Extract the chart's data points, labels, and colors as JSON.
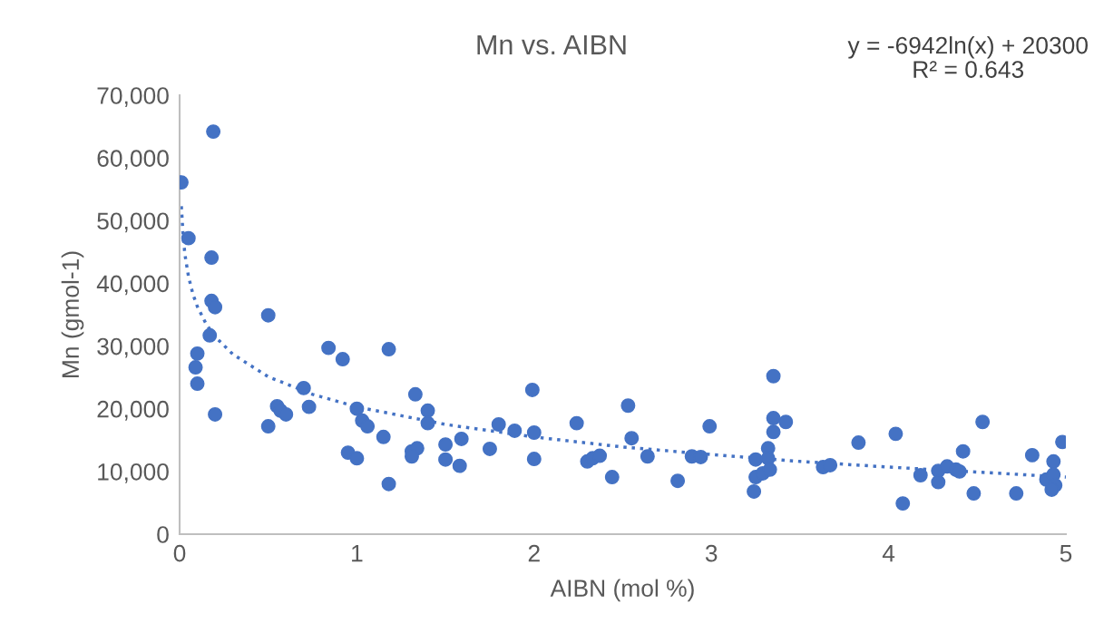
{
  "chart_data": {
    "type": "scatter",
    "title": "Mn vs. AIBN",
    "xlabel": "AIBN (mol %)",
    "ylabel": "Mn (gmol-1)",
    "annotations": [
      "y = -6942ln(x) + 20300\nR² = 0.643"
    ],
    "xlim": [
      0,
      5
    ],
    "xticks": [
      0,
      1,
      2,
      3,
      4,
      5
    ],
    "ylim": [
      0,
      70000
    ],
    "yticks": [
      0,
      {
        "value": 10000,
        "label": "10,000"
      },
      {
        "value": 20000,
        "label": "20,000"
      },
      {
        "value": 30000,
        "label": "30,000"
      },
      {
        "value": 40000,
        "label": "40,000"
      },
      {
        "value": 50000,
        "label": "50,000"
      },
      {
        "value": 60000,
        "label": "60,000"
      },
      {
        "value": 70000,
        "label": "70,000"
      }
    ],
    "grid": false,
    "marker": "circle",
    "series": [
      {
        "color": "#4472c4",
        "x": [
          0.19,
          0.01,
          0.05,
          0.18,
          0.18,
          0.2,
          0.17,
          0.1,
          0.09,
          0.1,
          0.2,
          0.5,
          0.84,
          0.92,
          1.18,
          0.7,
          0.55,
          0.57,
          0.6,
          0.73,
          0.5,
          1.0,
          1.03,
          1.06,
          1.15,
          0.95,
          1.0,
          1.18,
          1.33,
          1.4,
          1.4,
          1.31,
          1.34,
          1.31,
          1.5,
          1.59,
          1.5,
          1.58,
          1.75,
          1.8,
          1.89,
          1.99,
          2.0,
          2.0,
          2.24,
          2.3,
          2.33,
          2.37,
          2.44,
          2.53,
          2.55,
          2.64,
          2.81,
          2.89,
          2.94,
          2.99,
          3.24,
          3.25,
          3.25,
          3.29,
          3.32,
          3.32,
          3.33,
          3.35,
          3.35,
          3.35,
          3.42,
          3.63,
          3.67,
          3.83,
          4.04,
          4.08,
          4.18,
          4.28,
          4.28,
          4.33,
          4.38,
          4.4,
          4.42,
          4.48,
          4.53,
          4.72,
          4.81,
          4.89,
          4.93,
          4.93,
          4.94,
          4.92,
          4.98
        ],
        "values": [
          64200,
          56100,
          47200,
          44100,
          37200,
          36200,
          31700,
          28800,
          26600,
          24000,
          19100,
          34900,
          29700,
          27900,
          29500,
          23300,
          20400,
          19700,
          19100,
          20300,
          17200,
          20000,
          18100,
          17200,
          15500,
          13000,
          12100,
          8000,
          22300,
          19700,
          17700,
          13200,
          13700,
          12400,
          14300,
          15200,
          11900,
          10900,
          13600,
          17500,
          16500,
          23000,
          16200,
          12000,
          17700,
          11600,
          12100,
          12500,
          9100,
          20500,
          15300,
          12400,
          8500,
          12400,
          12300,
          17200,
          6800,
          11900,
          9100,
          9700,
          13700,
          12100,
          10300,
          25200,
          18500,
          16300,
          17900,
          10700,
          11000,
          14600,
          16000,
          4900,
          9400,
          10100,
          8300,
          10800,
          10300,
          10000,
          13200,
          6500,
          17900,
          6500,
          12600,
          8700,
          11600,
          9500,
          7800,
          7100,
          14700
        ]
      },
      {
        "type": "line",
        "color": "#4472c4",
        "line_style": "dotted",
        "marker": "none",
        "x": [
          0.01,
          0.02,
          0.03,
          0.05,
          0.075,
          0.1,
          0.15,
          0.2,
          0.3,
          0.5,
          0.75,
          1,
          1.5,
          2,
          2.5,
          3,
          3.5,
          4,
          4.5,
          5
        ],
        "values": [
          52300,
          47500,
          44600,
          41100,
          38300,
          36300,
          33500,
          31500,
          28700,
          25100,
          22300,
          20300,
          17500,
          15500,
          13900,
          12700,
          11600,
          10700,
          9900,
          9100
        ]
      }
    ]
  }
}
